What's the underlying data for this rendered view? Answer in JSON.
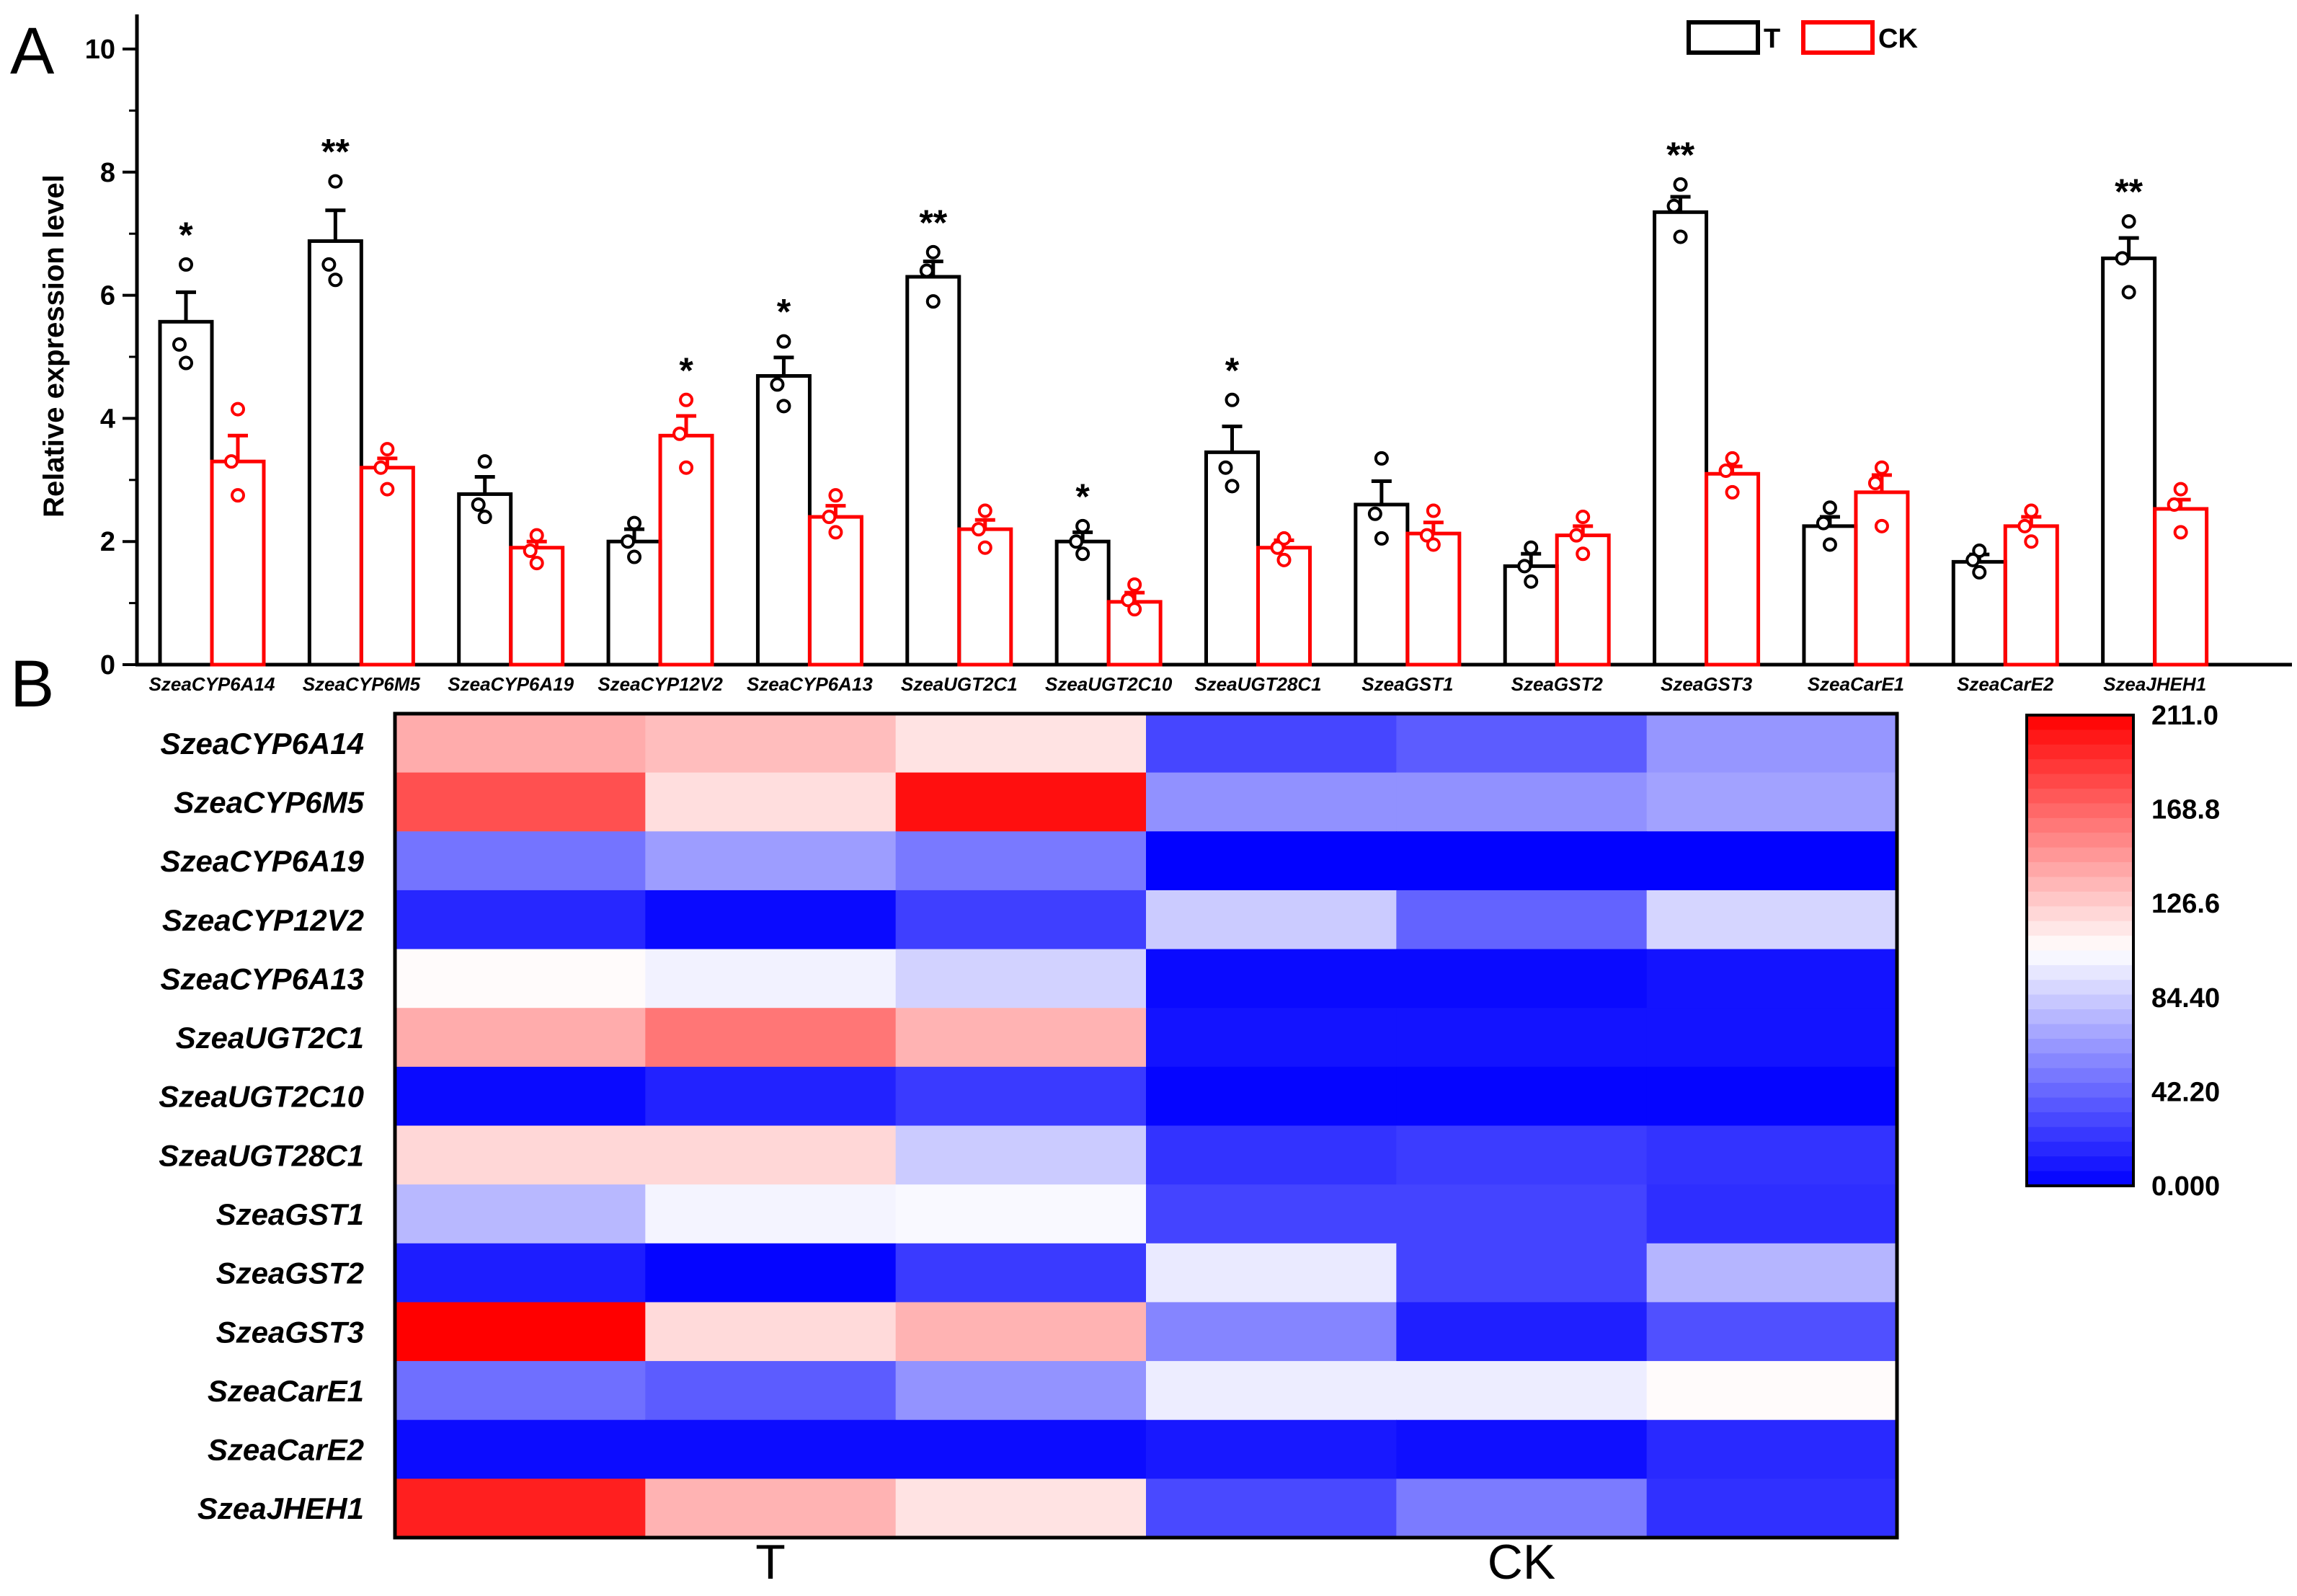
{
  "chart_data": [
    {
      "type": "bar",
      "panel": "A",
      "title": "",
      "xlabel": "",
      "ylabel": "Relative expression level",
      "ylim": [
        0,
        10
      ],
      "yticks": [
        0,
        2,
        4,
        6,
        8,
        10
      ],
      "legend": {
        "placement": "top-right",
        "entries": [
          "T",
          "CK"
        ]
      },
      "colors": {
        "T": "#000000",
        "CK": "#ff0000"
      },
      "categories": [
        "SzeaCYP6A14",
        "SzeaCYP6M5",
        "SzeaCYP6A19",
        "SzeaCYP12V2",
        "SzeaCYP6A13",
        "SzeaUGT2C1",
        "SzeaUGT2C10",
        "SzeaUGT28C1",
        "SzeaGST1",
        "SzeaGST2",
        "SzeaGST3",
        "SzeaCarE1",
        "SzeaCarE2",
        "SzeaJHEH1"
      ],
      "series": [
        {
          "name": "T",
          "values": [
            5.57,
            6.88,
            2.77,
            2.0,
            4.69,
            6.3,
            2.0,
            3.45,
            2.6,
            1.6,
            7.35,
            2.25,
            1.67,
            6.6
          ],
          "errors": [
            0.48,
            0.5,
            0.28,
            0.2,
            0.3,
            0.25,
            0.15,
            0.42,
            0.38,
            0.2,
            0.25,
            0.15,
            0.12,
            0.33
          ],
          "points": [
            [
              6.5,
              5.2,
              4.9
            ],
            [
              7.85,
              6.5,
              6.25
            ],
            [
              3.3,
              2.6,
              2.4
            ],
            [
              2.3,
              2.0,
              1.75
            ],
            [
              5.25,
              4.55,
              4.2
            ],
            [
              6.7,
              6.4,
              5.9
            ],
            [
              2.25,
              2.0,
              1.8
            ],
            [
              4.3,
              3.2,
              2.9
            ],
            [
              3.35,
              2.45,
              2.05
            ],
            [
              1.9,
              1.6,
              1.35
            ],
            [
              7.8,
              7.45,
              6.95
            ],
            [
              2.55,
              2.3,
              1.95
            ],
            [
              1.85,
              1.7,
              1.5
            ],
            [
              7.2,
              6.6,
              6.05
            ]
          ],
          "significance": [
            "*",
            "**",
            "",
            "",
            "*",
            "**",
            "*",
            "*",
            "",
            "",
            "**",
            "",
            "",
            "**"
          ]
        },
        {
          "name": "CK",
          "values": [
            3.3,
            3.2,
            1.9,
            3.72,
            2.4,
            2.2,
            1.02,
            1.9,
            2.13,
            2.1,
            3.1,
            2.8,
            2.25,
            2.53
          ],
          "errors": [
            0.42,
            0.15,
            0.1,
            0.32,
            0.18,
            0.15,
            0.15,
            0.12,
            0.18,
            0.15,
            0.12,
            0.28,
            0.15,
            0.15
          ],
          "points": [
            [
              4.15,
              3.3,
              2.75
            ],
            [
              3.5,
              3.2,
              2.85
            ],
            [
              2.1,
              1.85,
              1.65
            ],
            [
              4.3,
              3.75,
              3.2
            ],
            [
              2.75,
              2.4,
              2.15
            ],
            [
              2.5,
              2.2,
              1.9
            ],
            [
              1.3,
              1.05,
              0.9
            ],
            [
              2.05,
              1.9,
              1.7
            ],
            [
              2.5,
              2.1,
              1.95
            ],
            [
              2.4,
              2.1,
              1.8
            ],
            [
              3.35,
              3.15,
              2.8
            ],
            [
              3.2,
              2.95,
              2.25
            ],
            [
              2.5,
              2.25,
              2.0
            ],
            [
              2.85,
              2.6,
              2.15
            ]
          ],
          "significance": [
            "",
            "",
            "",
            "*",
            "",
            "",
            "",
            "",
            "",
            "",
            "",
            "",
            "",
            ""
          ]
        }
      ]
    },
    {
      "type": "heatmap",
      "panel": "B",
      "rows": [
        "SzeaCYP6A14",
        "SzeaCYP6M5",
        "SzeaCYP6A19",
        "SzeaCYP12V2",
        "SzeaCYP6A13",
        "SzeaUGT2C1",
        "SzeaUGT2C10",
        "SzeaUGT28C1",
        "SzeaGST1",
        "SzeaGST2",
        "SzeaGST3",
        "SzeaCarE1",
        "SzeaCarE2",
        "SzeaJHEH1"
      ],
      "groups": [
        "T",
        "CK"
      ],
      "replicates_per_group": 3,
      "values": [
        [
          140,
          133,
          117,
          29,
          38,
          62
        ],
        [
          178,
          119,
          205,
          60,
          60,
          67
        ],
        [
          48,
          65,
          50,
          1,
          1,
          1
        ],
        [
          16,
          4,
          26,
          84,
          41,
          88
        ],
        [
          107,
          100,
          87,
          4,
          4,
          8
        ],
        [
          140,
          162,
          137,
          8,
          8,
          8
        ],
        [
          4,
          14,
          24,
          2,
          2,
          2
        ],
        [
          122,
          122,
          84,
          21,
          25,
          21
        ],
        [
          76,
          101,
          103,
          28,
          28,
          19
        ],
        [
          12,
          2,
          24,
          97,
          28,
          75
        ],
        [
          211,
          121,
          137,
          55,
          13,
          33
        ],
        [
          46,
          38,
          61,
          98,
          98,
          107
        ],
        [
          5,
          5,
          5,
          10,
          6,
          17
        ],
        [
          198,
          137,
          117,
          30,
          51,
          20
        ]
      ],
      "colorbar": {
        "min": 0,
        "max": 211,
        "labels": [
          "211.0",
          "168.8",
          "126.6",
          "84.40",
          "42.20",
          "0.000"
        ],
        "colors": {
          "low": "#0000ff",
          "mid": "#ffffff",
          "high": "#ff0000"
        }
      }
    }
  ],
  "panel_labels": {
    "a": "A",
    "b": "B"
  }
}
